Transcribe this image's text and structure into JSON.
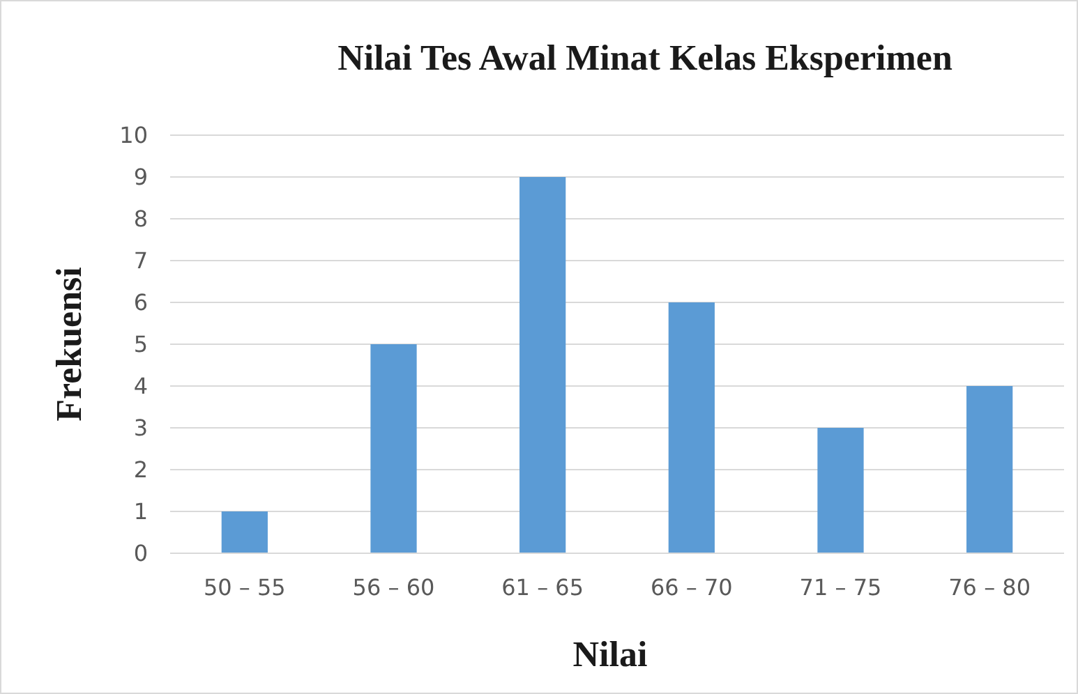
{
  "chart_data": {
    "type": "bar",
    "title": "Nilai Tes Awal Minat Kelas Eksperimen",
    "xlabel": "Nilai",
    "ylabel": "Frekuensi",
    "categories": [
      "50 – 55",
      "56 – 60",
      "61 – 65",
      "66 – 70",
      "71 – 75",
      "76 – 80"
    ],
    "values": [
      1,
      5,
      9,
      6,
      3,
      4
    ],
    "color": "#5b9bd5",
    "ylim": [
      0,
      10
    ],
    "yticks": [
      0,
      1,
      2,
      3,
      4,
      5,
      6,
      7,
      8,
      9,
      10
    ],
    "grid": "y"
  }
}
